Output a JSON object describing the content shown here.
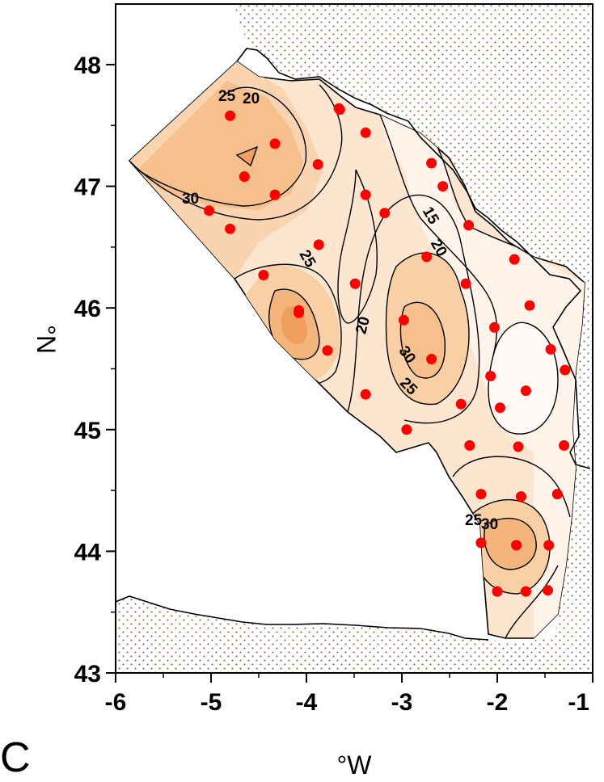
{
  "panel_label": "C",
  "colors": {
    "land_dots": "#9a5a3a",
    "station_dot": "#ff0000",
    "fill_low": "#fff4ec",
    "fill_mid": "#fcdcbc",
    "fill_high": "#f8c498",
    "fill_peak": "#f1a76a"
  },
  "axes": {
    "x_label": "°W",
    "y_label": "°N",
    "x_ticks": [
      "-6",
      "-5",
      "-4",
      "-3",
      "-2",
      "-1"
    ],
    "y_ticks": [
      "43",
      "44",
      "45",
      "46",
      "47",
      "48"
    ],
    "x_range": [
      -6,
      -1
    ],
    "y_range": [
      43,
      48.5
    ]
  },
  "contour_labels": [
    "20",
    "25",
    "30",
    "15",
    "20",
    "25",
    "20",
    "30",
    "25",
    "25",
    "30"
  ],
  "stations": [
    [
      -4.8,
      47.58
    ],
    [
      -4.33,
      47.35
    ],
    [
      -4.65,
      47.08
    ],
    [
      -5.02,
      46.8
    ],
    [
      -4.8,
      46.65
    ],
    [
      -4.33,
      46.93
    ],
    [
      -3.88,
      47.18
    ],
    [
      -3.87,
      46.52
    ],
    [
      -3.38,
      47.44
    ],
    [
      -3.65,
      47.63
    ],
    [
      -3.38,
      46.93
    ],
    [
      -3.18,
      46.78
    ],
    [
      -4.45,
      46.27
    ],
    [
      -4.08,
      45.98
    ],
    [
      -3.49,
      46.2
    ],
    [
      -3.78,
      45.65
    ],
    [
      -3.38,
      45.29
    ],
    [
      -2.98,
      45.9
    ],
    [
      -2.74,
      46.42
    ],
    [
      -2.69,
      47.19
    ],
    [
      -2.57,
      47.0
    ],
    [
      -2.3,
      46.68
    ],
    [
      -2.33,
      46.2
    ],
    [
      -2.69,
      45.58
    ],
    [
      -2.38,
      45.21
    ],
    [
      -2.95,
      45.0
    ],
    [
      -2.03,
      45.84
    ],
    [
      -1.97,
      45.18
    ],
    [
      -2.07,
      45.44
    ],
    [
      -1.82,
      46.4
    ],
    [
      -1.66,
      46.02
    ],
    [
      -1.7,
      45.32
    ],
    [
      -1.44,
      45.66
    ],
    [
      -1.29,
      45.49
    ],
    [
      -2.29,
      44.87
    ],
    [
      -1.78,
      44.86
    ],
    [
      -1.3,
      44.87
    ],
    [
      -2.17,
      44.47
    ],
    [
      -1.75,
      44.45
    ],
    [
      -1.37,
      44.47
    ],
    [
      -2.17,
      44.07
    ],
    [
      -1.8,
      44.05
    ],
    [
      -1.46,
      44.05
    ],
    [
      -2.0,
      43.67
    ],
    [
      -1.7,
      43.67
    ],
    [
      -1.47,
      43.68
    ],
    [
      -3.66,
      47.64
    ],
    [
      -4.08,
      45.96
    ]
  ]
}
